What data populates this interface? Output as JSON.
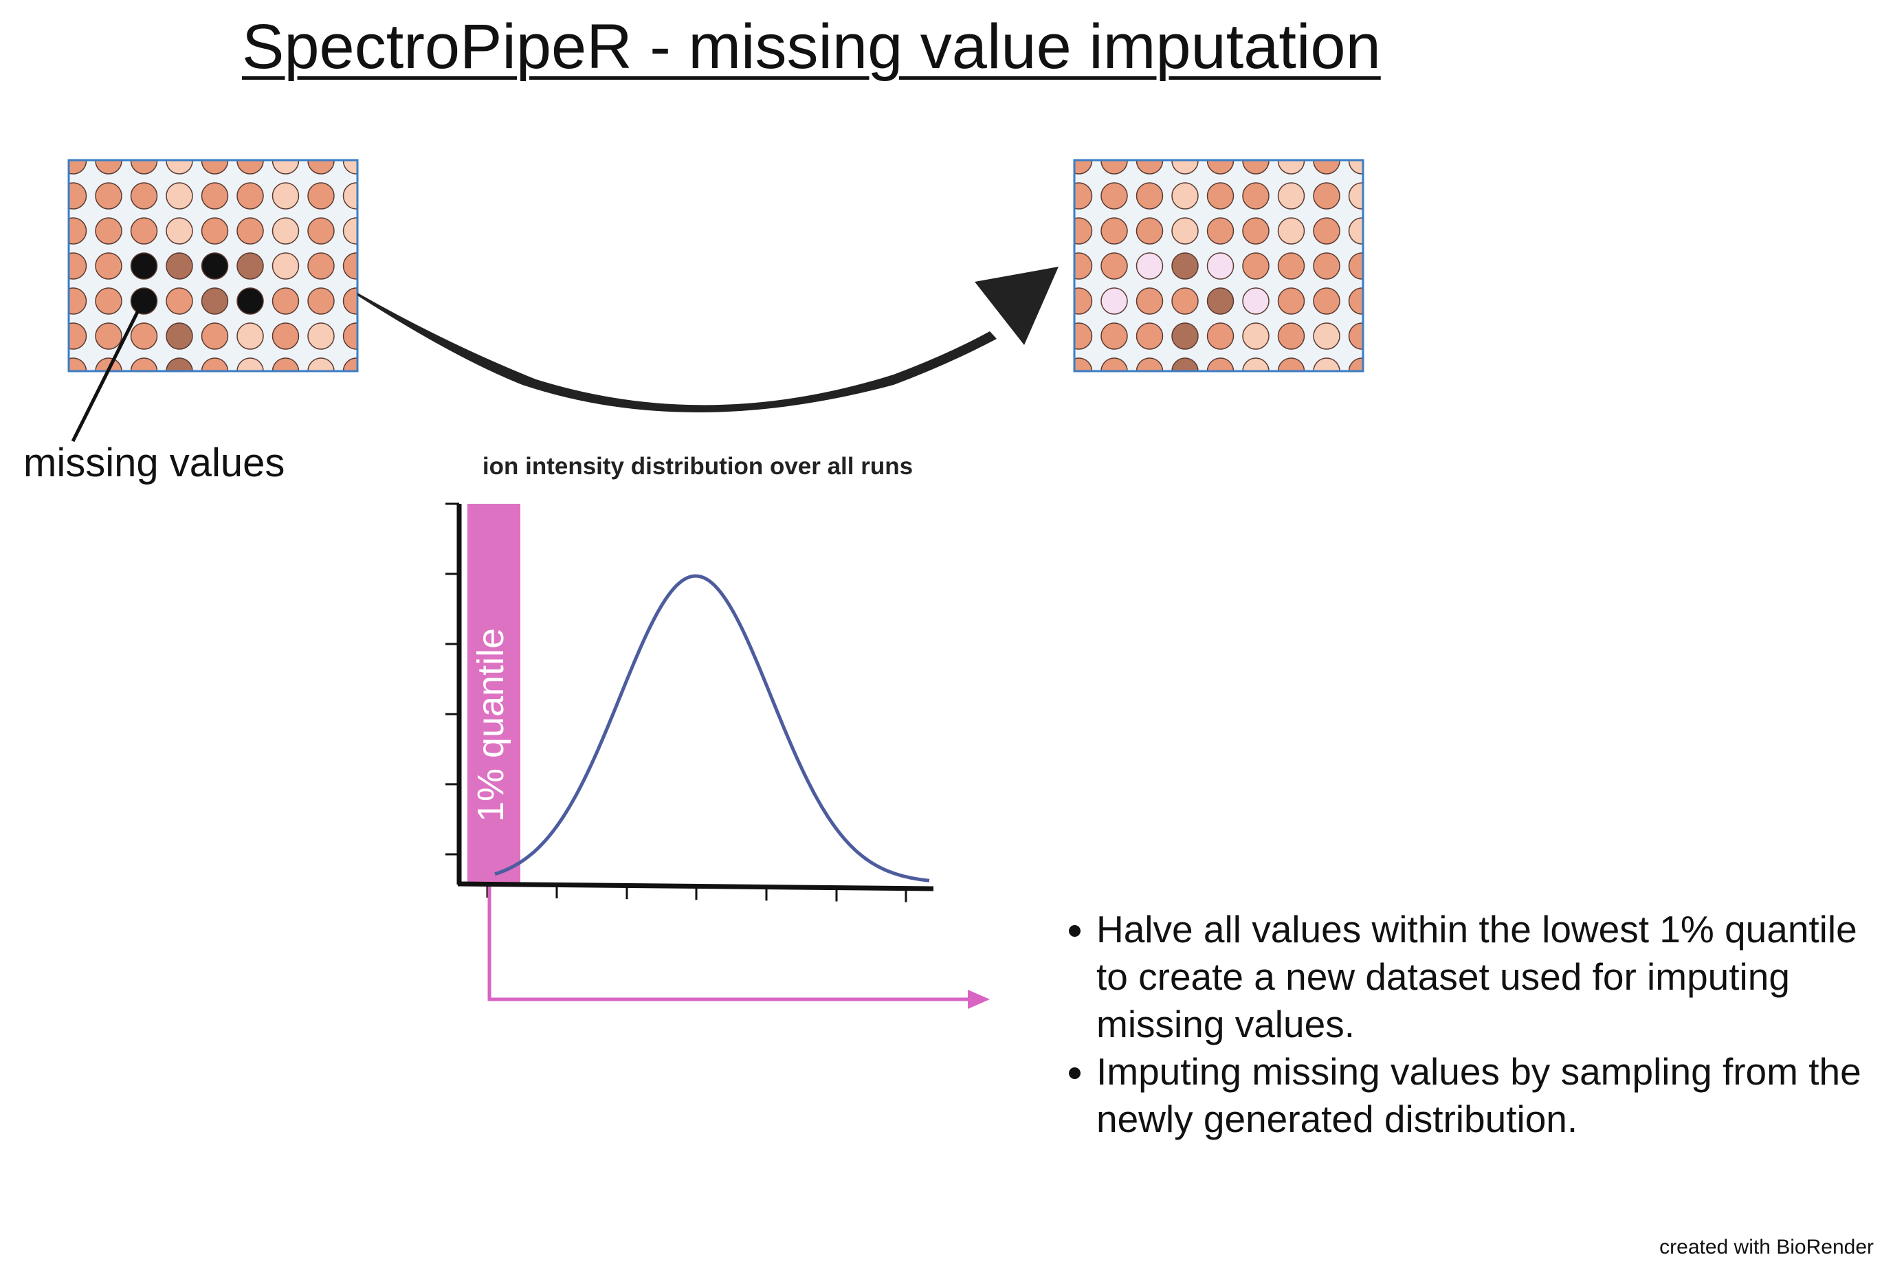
{
  "title": "SpectroPipeR - missing value imputation",
  "missing_values_label": "missing values",
  "chart": {
    "title": "ion intensity distribution over all runs",
    "quantile_label": "1% quantile"
  },
  "bullets": [
    "Halve all values within the lowest 1% quantile to create a new dataset used for imputing missing values.",
    "Imputing missing values by sampling from the newly generated distribution."
  ],
  "credit": "created with BioRender",
  "colors": {
    "well_frame": "#3b7dc4",
    "well_bg": "#eef3f8",
    "well_orange": "#e8997a",
    "well_pale": "#f7cdb8",
    "well_brown": "#ad7159",
    "well_missing": "#111111",
    "well_imputed": "#f6dff0",
    "curve": "#4d5c9e",
    "quantile_bar": "#dd72c2",
    "pink_arrow": "#d864c3",
    "big_arrow": "#222222"
  },
  "plates": {
    "before": [
      "oopoopop",
      "oopoopop",
      "oopoopop",
      "omBmBpoo",
      "oMoBMooo",
      "oobopopo",
      "oobopopo"
    ],
    "after": [
      "oopoopop",
      "oopoopop",
      "oopoopop",
      "oiBioooo",
      "iooBiooo",
      "oobopopo",
      "oobopopo"
    ]
  }
}
